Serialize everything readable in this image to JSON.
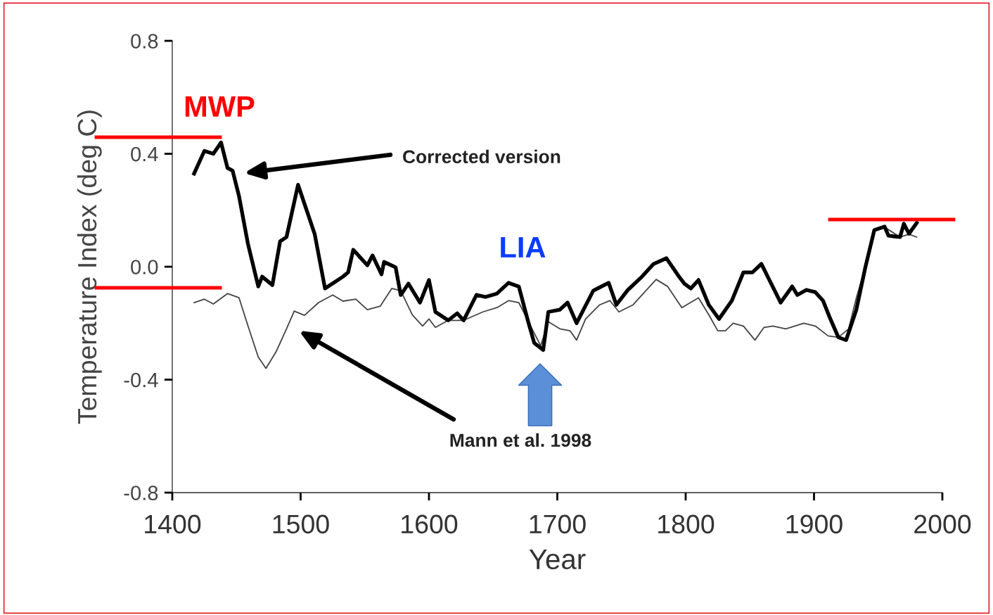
{
  "chart_data": {
    "type": "line",
    "xlabel": "Year",
    "ylabel": "Temperature Index (deg C)",
    "xlim": [
      1400,
      2000
    ],
    "xticks": [
      1400,
      1500,
      1600,
      1700,
      1800,
      1900,
      2000
    ],
    "ylim": [
      -0.8,
      0.8
    ],
    "yticks": [
      {
        "value": 0.8,
        "label": "0.8"
      },
      {
        "value": 0.4,
        "label": "0.4"
      },
      {
        "value": 0.0,
        "label": "0.0"
      },
      {
        "value": -0.4,
        "label": "-0.4"
      },
      {
        "value": -0.8,
        "label": "-0.8"
      }
    ],
    "marker": "none",
    "line_style": "solid",
    "series": [
      {
        "color": "#000000",
        "x": [
          1417,
          1425,
          1432,
          1438,
          1443,
          1447,
          1452,
          1459,
          1467,
          1470,
          1478,
          1484,
          1489,
          1498,
          1511,
          1519,
          1533,
          1537,
          1541,
          1552,
          1556,
          1563,
          1565,
          1574,
          1578,
          1584,
          1593,
          1600,
          1605,
          1615,
          1622,
          1627,
          1637,
          1644,
          1653,
          1662,
          1670,
          1677,
          1682,
          1689,
          1693,
          1702,
          1708,
          1715,
          1728,
          1740,
          1746,
          1755,
          1766,
          1775,
          1785,
          1794,
          1799,
          1804,
          1810,
          1818,
          1826,
          1836,
          1845,
          1852,
          1859,
          1865,
          1874,
          1883,
          1887,
          1894,
          1901,
          1907,
          1912,
          1919,
          1925,
          1933,
          1940,
          1947,
          1955,
          1958,
          1967,
          1970,
          1974,
          1980
        ],
        "values": [
          0.33,
          0.41,
          0.4,
          0.44,
          0.35,
          0.34,
          0.25,
          0.08,
          -0.07,
          -0.035,
          -0.065,
          0.09,
          0.105,
          0.29,
          0.115,
          -0.077,
          -0.035,
          -0.02,
          0.06,
          0.005,
          0.04,
          -0.027,
          0.017,
          -0.002,
          -0.1,
          -0.06,
          -0.127,
          -0.047,
          -0.16,
          -0.19,
          -0.165,
          -0.19,
          -0.1,
          -0.107,
          -0.095,
          -0.057,
          -0.07,
          -0.19,
          -0.27,
          -0.295,
          -0.16,
          -0.152,
          -0.127,
          -0.2,
          -0.085,
          -0.057,
          -0.135,
          -0.082,
          -0.035,
          0.01,
          0.03,
          -0.03,
          -0.06,
          -0.077,
          -0.047,
          -0.135,
          -0.185,
          -0.12,
          -0.02,
          -0.02,
          0.01,
          -0.045,
          -0.127,
          -0.07,
          -0.1,
          -0.082,
          -0.09,
          -0.12,
          -0.177,
          -0.25,
          -0.26,
          -0.152,
          -0.002,
          0.13,
          0.142,
          0.11,
          0.105,
          0.152,
          0.117,
          0.155
        ]
      },
      {
        "color": "#444444",
        "x": [
          1417,
          1425,
          1432,
          1443,
          1452,
          1459,
          1467,
          1473,
          1481,
          1489,
          1495,
          1503,
          1514,
          1525,
          1533,
          1543,
          1552,
          1562,
          1571,
          1578,
          1587,
          1595,
          1600,
          1605,
          1615,
          1627,
          1642,
          1653,
          1662,
          1670,
          1677,
          1687,
          1693,
          1702,
          1710,
          1715,
          1722,
          1733,
          1741,
          1748,
          1759,
          1766,
          1777,
          1786,
          1797,
          1810,
          1818,
          1825,
          1831,
          1837,
          1845,
          1854,
          1861,
          1868,
          1878,
          1892,
          1901,
          1911,
          1919,
          1927,
          1933,
          1941,
          1947,
          1955,
          1967,
          1974,
          1980
        ],
        "values": [
          -0.127,
          -0.115,
          -0.132,
          -0.095,
          -0.11,
          -0.21,
          -0.32,
          -0.36,
          -0.3,
          -0.22,
          -0.157,
          -0.172,
          -0.127,
          -0.1,
          -0.122,
          -0.115,
          -0.152,
          -0.14,
          -0.077,
          -0.085,
          -0.17,
          -0.21,
          -0.185,
          -0.215,
          -0.19,
          -0.19,
          -0.16,
          -0.145,
          -0.12,
          -0.127,
          -0.19,
          -0.28,
          -0.195,
          -0.22,
          -0.227,
          -0.26,
          -0.185,
          -0.135,
          -0.12,
          -0.16,
          -0.135,
          -0.1,
          -0.045,
          -0.07,
          -0.145,
          -0.11,
          -0.17,
          -0.227,
          -0.227,
          -0.2,
          -0.21,
          -0.26,
          -0.215,
          -0.21,
          -0.22,
          -0.2,
          -0.21,
          -0.245,
          -0.25,
          -0.22,
          -0.11,
          0.015,
          0.13,
          0.14,
          0.105,
          0.115,
          0.105
        ]
      }
    ],
    "annotations": [
      "MWP",
      "LIA",
      "Corrected version",
      "Mann et al. 1998"
    ]
  }
}
